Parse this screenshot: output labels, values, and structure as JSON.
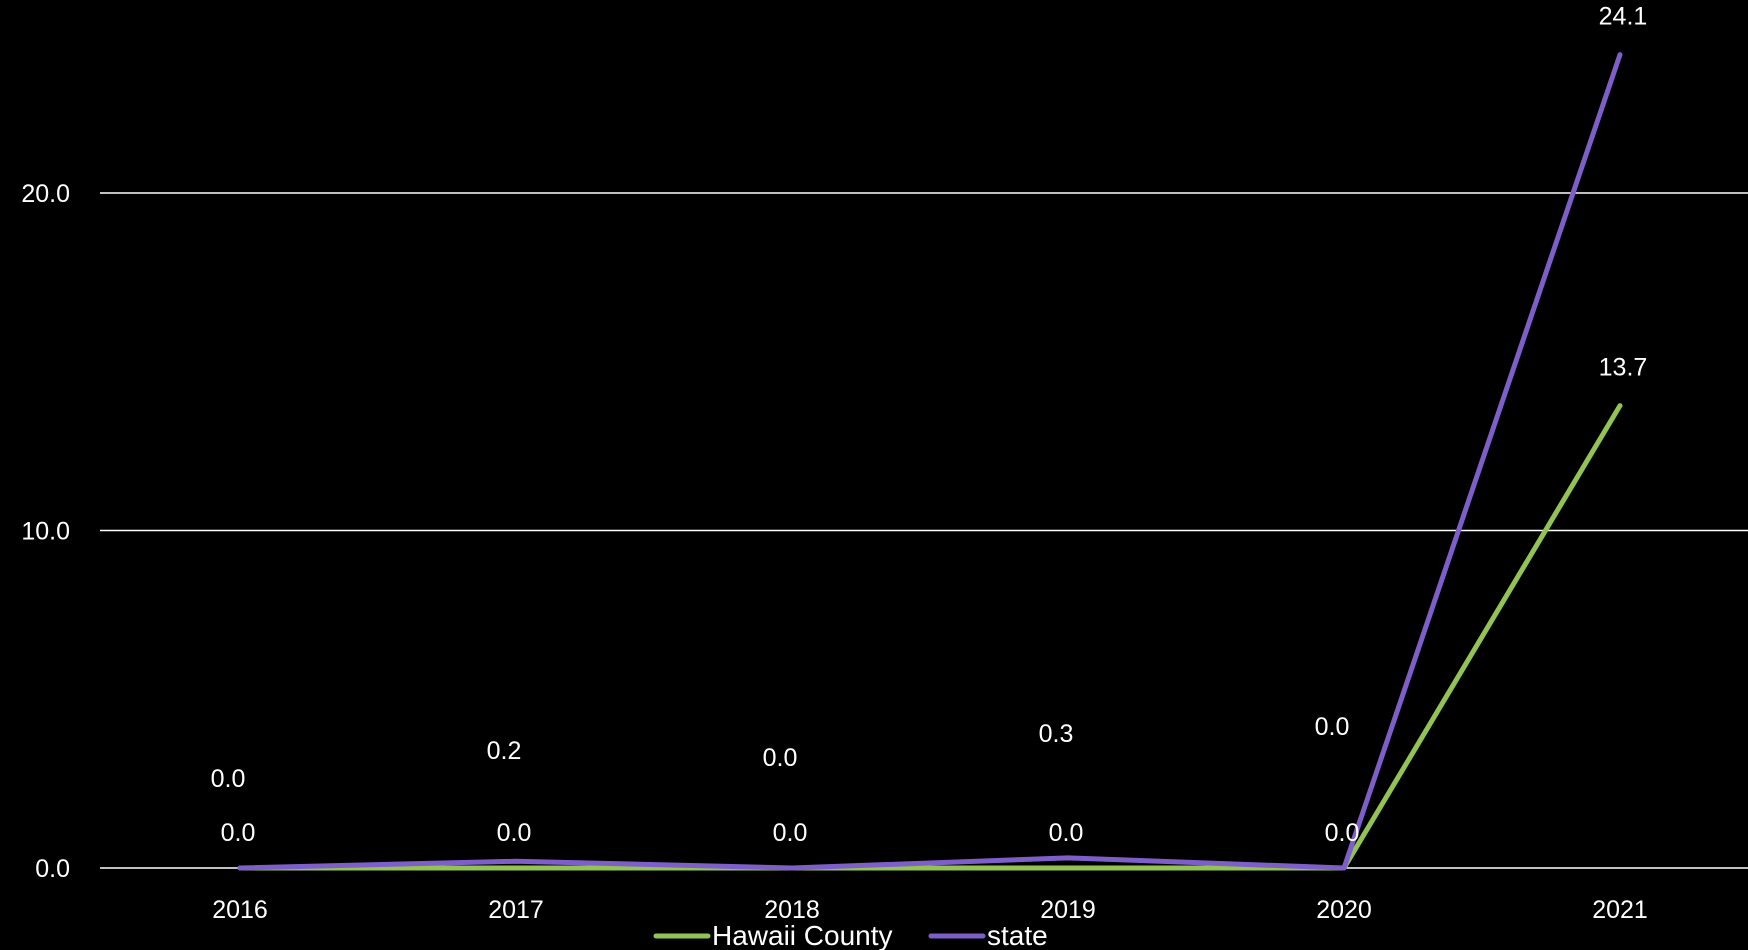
{
  "chart_data": {
    "type": "line",
    "title": "",
    "xlabel": "",
    "ylabel": "",
    "categories": [
      "2016",
      "2017",
      "2018",
      "2019",
      "2020",
      "2021"
    ],
    "ylim": [
      0,
      25
    ],
    "yticks": [
      "0.0",
      "10.0",
      "20.0"
    ],
    "grid": true,
    "legend_position": "bottom",
    "series": [
      {
        "name": "Hawaii County",
        "color": "#92c353",
        "values": [
          0.0,
          0.0,
          0.0,
          0.0,
          0.0,
          13.7
        ],
        "labels": [
          "0.0",
          "0.0",
          "0.0",
          "0.0",
          "0.0",
          "13.7"
        ]
      },
      {
        "name": "state",
        "color": "#7e5fc9",
        "values": [
          0.0,
          0.2,
          0.0,
          0.3,
          0.0,
          24.1
        ],
        "labels": [
          "0.0",
          "0.2",
          "0.0",
          "0.3",
          "0.0",
          "24.1"
        ]
      }
    ]
  }
}
